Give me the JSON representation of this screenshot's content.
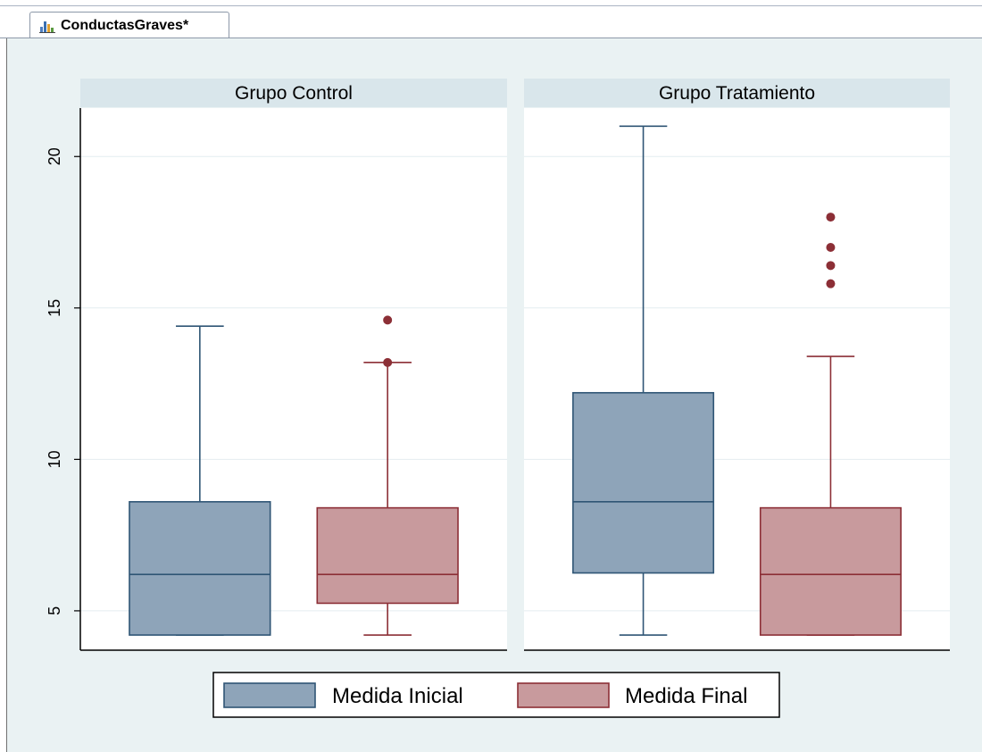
{
  "window": {
    "tab_label": "ConductasGraves*",
    "tab_icon": "bar-chart-icon"
  },
  "chart_data": {
    "type": "box",
    "panels": [
      "Grupo Control",
      "Grupo Tratamiento"
    ],
    "ylim": [
      3.7,
      21.6
    ],
    "yticks": [
      5,
      10,
      15,
      20
    ],
    "grid": true,
    "legend_position": "bottom",
    "series": [
      {
        "name": "Medida Inicial",
        "color": "#8ea4b9",
        "edge": "#2f5575"
      },
      {
        "name": "Medida Final",
        "color": "#c89a9d",
        "edge": "#8c2f36"
      }
    ],
    "boxes": [
      {
        "panel": "Grupo Control",
        "series": "Medida Inicial",
        "whisker_low": 4.2,
        "q1": 4.2,
        "median": 6.2,
        "q3": 8.6,
        "whisker_high": 14.4,
        "outliers": []
      },
      {
        "panel": "Grupo Control",
        "series": "Medida Final",
        "whisker_low": 4.2,
        "q1": 5.25,
        "median": 6.2,
        "q3": 8.4,
        "whisker_high": 13.2,
        "outliers": [
          13.2,
          14.6
        ]
      },
      {
        "panel": "Grupo Tratamiento",
        "series": "Medida Inicial",
        "whisker_low": 4.2,
        "q1": 6.25,
        "median": 8.6,
        "q3": 12.2,
        "whisker_high": 21.0,
        "outliers": []
      },
      {
        "panel": "Grupo Tratamiento",
        "series": "Medida Final",
        "whisker_low": 4.2,
        "q1": 4.2,
        "median": 6.2,
        "q3": 8.4,
        "whisker_high": 13.4,
        "outliers": [
          15.8,
          16.4,
          17.0,
          18.0
        ]
      }
    ]
  }
}
